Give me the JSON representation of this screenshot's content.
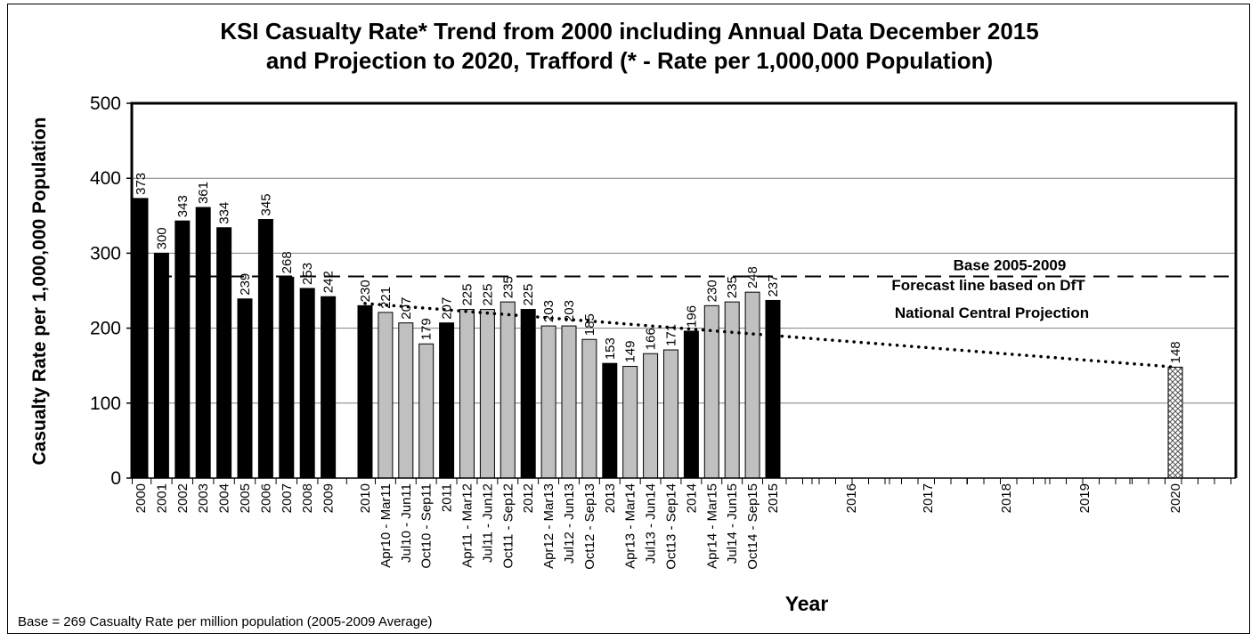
{
  "chart_data": {
    "type": "bar",
    "title": "KSI Casualty Rate* Trend from 2000 including Annual Data December 2015",
    "subtitle": "and Projection to 2020, Trafford (* - Rate per 1,000,000 Population)",
    "xlabel": "Year",
    "ylabel": "Casualty Rate per 1,000,000 Population",
    "ylim": [
      0,
      500
    ],
    "yticks": [
      0,
      100,
      200,
      300,
      400,
      500
    ],
    "grid": true,
    "categories": [
      "2000",
      "2001",
      "2002",
      "2003",
      "2004",
      "2005",
      "2006",
      "2007",
      "2008",
      "2009",
      "2010",
      "Apr10 - Mar11",
      "Jul10 - Jun11",
      "Oct10 - Sep11",
      "2011",
      "Apr11 - Mar12",
      "Jul11 - Jun12",
      "Oct11 - Sep12",
      "2012",
      "Apr12 - Mar13",
      "Jul12 - Jun13",
      "Oct12 - Sep13",
      "2013",
      "Apr13 - Mar14",
      "Jul13 - Jun14",
      "Oct13 - Sep14",
      "2014",
      "Apr14 - Mar15",
      "Jul14 - Jun15",
      "Oct14 - Sep15",
      "2015",
      "2016",
      "2017",
      "2018",
      "2019",
      "2020"
    ],
    "values": [
      373,
      300,
      343,
      361,
      334,
      239,
      345,
      268,
      253,
      242,
      230,
      221,
      207,
      179,
      207,
      225,
      225,
      235,
      225,
      203,
      203,
      185,
      153,
      149,
      166,
      171,
      196,
      230,
      235,
      248,
      237,
      null,
      null,
      null,
      null,
      148
    ],
    "value_labels": [
      "373",
      "300",
      "343",
      "361",
      "334",
      "239",
      "345",
      "268",
      "253",
      "242",
      "230",
      "221",
      "207",
      "179",
      "207",
      "225",
      "225",
      "235",
      "225",
      "203",
      "203",
      "185",
      "153",
      "149",
      "166",
      "171",
      "196",
      "230",
      "235",
      "248",
      "237",
      "",
      "",
      "",
      "",
      "148"
    ],
    "bar_styles": [
      "annual",
      "annual",
      "annual",
      "annual",
      "annual",
      "annual",
      "annual",
      "annual",
      "annual",
      "annual",
      "annual",
      "rolling",
      "rolling",
      "rolling",
      "annual",
      "rolling",
      "rolling",
      "rolling",
      "annual",
      "rolling",
      "rolling",
      "rolling",
      "annual",
      "rolling",
      "rolling",
      "rolling",
      "annual",
      "rolling",
      "rolling",
      "rolling",
      "annual",
      "none",
      "none",
      "none",
      "none",
      "projection"
    ],
    "base_line": {
      "value": 269,
      "label": "Base 2005-2009"
    },
    "forecast_line": {
      "from_value": 233,
      "to_value": 148,
      "label_line1": "Forecast line based on DfT",
      "label_line2": "National Central Projection"
    },
    "colors": {
      "annual": "#000000",
      "rolling": "#c0c0c0",
      "projection": "#e0e0e0",
      "grid": "#7f7f7f"
    }
  },
  "footnote": "Base = 269 Casualty Rate per million population (2005-2009 Average)"
}
